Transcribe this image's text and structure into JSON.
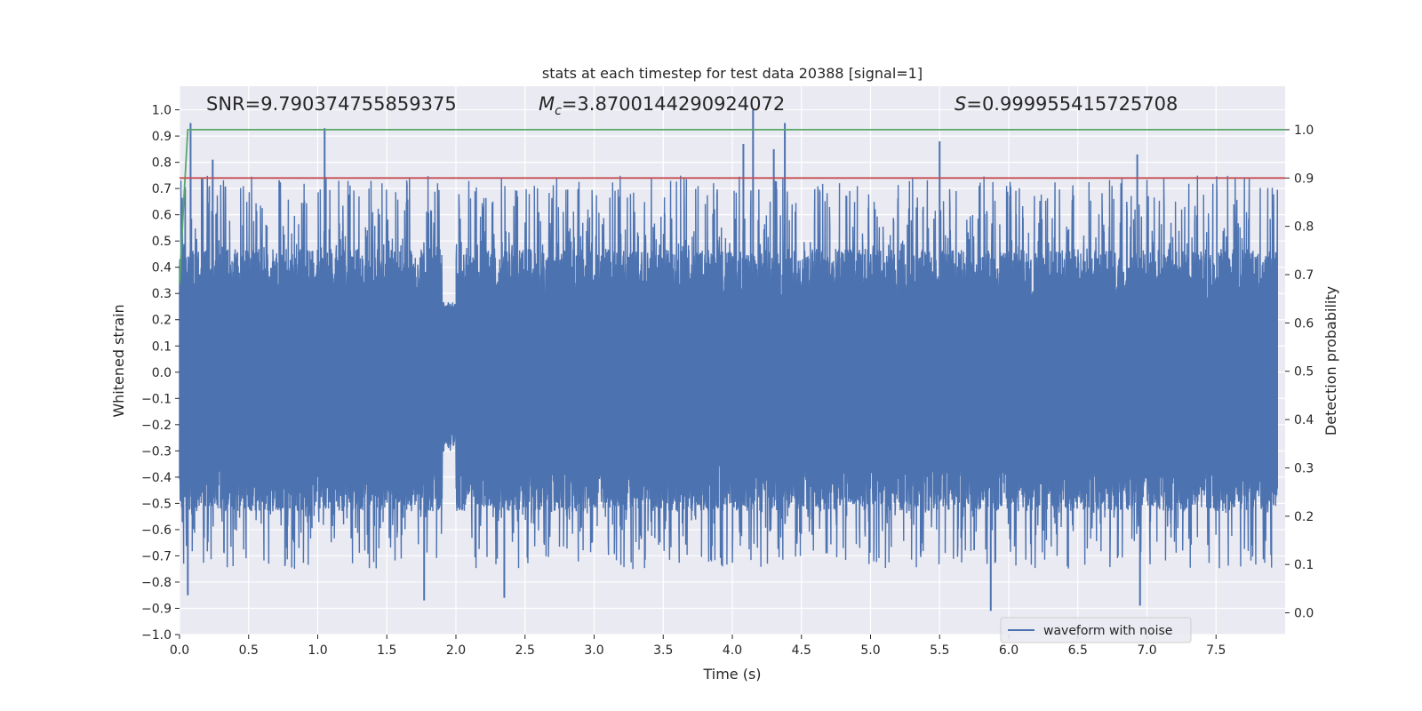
{
  "chart_data": {
    "type": "line",
    "title": "stats at each timestep for test data 20388 [signal=1]",
    "xlabel": "Time (s)",
    "ylabel": "Whitened strain",
    "y2label": "Detection probability",
    "xlim": [
      0.0,
      8.0
    ],
    "ylim": [
      -1.0,
      1.09
    ],
    "y2lim": [
      -0.045,
      1.09
    ],
    "xticks": [
      0.0,
      0.5,
      1.0,
      1.5,
      2.0,
      2.5,
      3.0,
      3.5,
      4.0,
      4.5,
      5.0,
      5.5,
      6.0,
      6.5,
      7.0,
      7.5
    ],
    "xtick_labels": [
      "0.0",
      "0.5",
      "1.0",
      "1.5",
      "2.0",
      "2.5",
      "3.0",
      "3.5",
      "4.0",
      "4.5",
      "5.0",
      "5.5",
      "6.0",
      "6.5",
      "7.0",
      "7.5"
    ],
    "yticks": [
      -1.0,
      -0.9,
      -0.8,
      -0.7,
      -0.6,
      -0.5,
      -0.4,
      -0.3,
      -0.2,
      -0.1,
      0.0,
      0.1,
      0.2,
      0.3,
      0.4,
      0.5,
      0.6,
      0.7,
      0.8,
      0.9,
      1.0
    ],
    "ytick_labels": [
      "−1.0",
      "−0.9",
      "−0.8",
      "−0.7",
      "−0.6",
      "−0.5",
      "−0.4",
      "−0.3",
      "−0.2",
      "−0.1",
      "0.0",
      "0.1",
      "0.2",
      "0.3",
      "0.4",
      "0.5",
      "0.6",
      "0.7",
      "0.8",
      "0.9",
      "1.0"
    ],
    "y2ticks": [
      0.0,
      0.1,
      0.2,
      0.3,
      0.4,
      0.5,
      0.6,
      0.7,
      0.8,
      0.9,
      1.0
    ],
    "y2tick_labels": [
      "0.0",
      "0.1",
      "0.2",
      "0.3",
      "0.4",
      "0.5",
      "0.6",
      "0.7",
      "0.8",
      "0.9",
      "1.0"
    ],
    "grid": true,
    "legend_placement": "bottom-right",
    "series": [
      {
        "name": "waveform with noise",
        "axis": "left",
        "color": "#4c72b0",
        "peaks": [
          {
            "x": 0.08,
            "y": 0.95
          },
          {
            "x": 0.24,
            "y": 0.81
          },
          {
            "x": 1.05,
            "y": 0.93
          },
          {
            "x": 4.15,
            "y": 1.0
          },
          {
            "x": 4.38,
            "y": 0.95
          },
          {
            "x": 4.08,
            "y": 0.87
          },
          {
            "x": 4.3,
            "y": 0.85
          },
          {
            "x": 5.5,
            "y": 0.88
          },
          {
            "x": 6.93,
            "y": 0.83
          },
          {
            "x": 0.06,
            "y": -0.85
          },
          {
            "x": 1.77,
            "y": -0.87
          },
          {
            "x": 2.35,
            "y": -0.86
          },
          {
            "x": 5.87,
            "y": -0.91
          },
          {
            "x": 6.95,
            "y": -0.89
          }
        ]
      },
      {
        "name": "",
        "axis": "right",
        "color": "#55a868",
        "x": [
          0.0,
          0.03,
          0.06,
          0.1,
          0.2,
          8.0
        ],
        "y": [
          0.68,
          0.85,
          1.0,
          1.0,
          1.0,
          1.0
        ]
      },
      {
        "name": "",
        "axis": "right",
        "color": "#c44e52",
        "x": [
          0.0,
          8.0
        ],
        "y": [
          0.9,
          0.9
        ]
      }
    ],
    "annotations": [
      {
        "id": "snr",
        "text": "SNR=9.790374755859375"
      },
      {
        "id": "mc_sym",
        "text": "M"
      },
      {
        "id": "mc_sub",
        "text": "c"
      },
      {
        "id": "mc_val",
        "text": "=3.8700144290924072"
      },
      {
        "id": "s_sym",
        "text": "S"
      },
      {
        "id": "s_val",
        "text": "=0.999955415725708"
      }
    ]
  },
  "colors": {
    "plot_background": "#eaeaf2",
    "grid": "#ffffff",
    "waveform": "#4c72b0",
    "probability": "#55a868",
    "threshold": "#c44e52"
  }
}
